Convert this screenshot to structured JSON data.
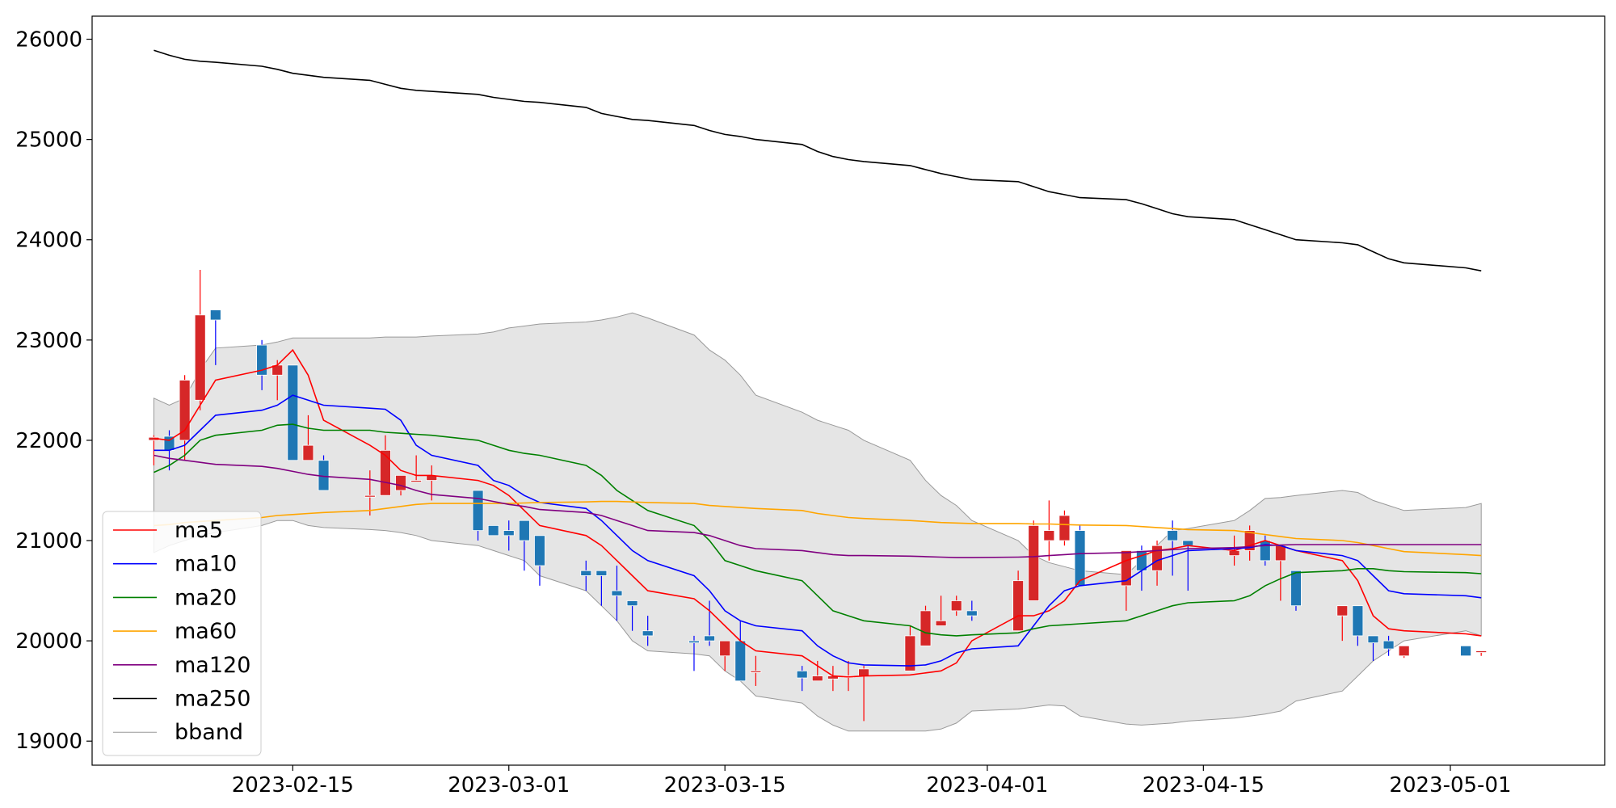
{
  "chart_data": {
    "type": "candlestick",
    "grid": false,
    "legend_position": "lower-left",
    "y_ticks": [
      19000,
      20000,
      21000,
      22000,
      23000,
      24000,
      25000,
      26000
    ],
    "ylim": [
      18760,
      26230
    ],
    "xlim": [
      "2023-02-02",
      "2023-05-11"
    ],
    "x_ticks": [
      "2023-02-15",
      "2023-03-01",
      "2023-03-15",
      "2023-04-01",
      "2023-04-15",
      "2023-05-01"
    ],
    "colors": {
      "up": "#d62728",
      "down": "#1f77b4",
      "ma5": "#ff0000",
      "ma10": "#0000ff",
      "ma20": "#008000",
      "ma60": "#ffa500",
      "ma120": "#800080",
      "ma250": "#000000",
      "bband_fill": "#e5e5e5",
      "bband_edge": "#999999"
    },
    "legend": [
      "ma5",
      "ma10",
      "ma20",
      "ma60",
      "ma120",
      "ma250",
      "bband"
    ],
    "dates": [
      "2023-02-06",
      "2023-02-07",
      "2023-02-08",
      "2023-02-09",
      "2023-02-10",
      "2023-02-13",
      "2023-02-14",
      "2023-02-15",
      "2023-02-16",
      "2023-02-17",
      "2023-02-20",
      "2023-02-21",
      "2023-02-22",
      "2023-02-23",
      "2023-02-24",
      "2023-02-27",
      "2023-02-28",
      "2023-03-01",
      "2023-03-02",
      "2023-03-03",
      "2023-03-06",
      "2023-03-07",
      "2023-03-08",
      "2023-03-09",
      "2023-03-10",
      "2023-03-13",
      "2023-03-14",
      "2023-03-15",
      "2023-03-16",
      "2023-03-17",
      "2023-03-20",
      "2023-03-21",
      "2023-03-22",
      "2023-03-23",
      "2023-03-24",
      "2023-03-27",
      "2023-03-28",
      "2023-03-29",
      "2023-03-30",
      "2023-03-31",
      "2023-04-03",
      "2023-04-04",
      "2023-04-05",
      "2023-04-06",
      "2023-04-07",
      "2023-04-10",
      "2023-04-11",
      "2023-04-12",
      "2023-04-13",
      "2023-04-14",
      "2023-04-17",
      "2023-04-18",
      "2023-04-19",
      "2023-04-20",
      "2023-04-21",
      "2023-04-24",
      "2023-04-25",
      "2023-04-26",
      "2023-04-27",
      "2023-04-28",
      "2023-05-02",
      "2023-05-03"
    ],
    "ohlc": [
      [
        22000,
        22050,
        21750,
        22030
      ],
      [
        22040,
        22100,
        21700,
        21900
      ],
      [
        22000,
        22650,
        21800,
        22600
      ],
      [
        22400,
        23700,
        22300,
        23250
      ],
      [
        23300,
        23300,
        22750,
        23200
      ],
      [
        22950,
        23000,
        22500,
        22650
      ],
      [
        22650,
        22800,
        22400,
        22750
      ],
      [
        22750,
        22750,
        21800,
        21800
      ],
      [
        21800,
        22250,
        21800,
        21950
      ],
      [
        21800,
        21850,
        21500,
        21500
      ],
      [
        21450,
        21700,
        21250,
        21450
      ],
      [
        21450,
        22050,
        21450,
        21900
      ],
      [
        21500,
        21650,
        21450,
        21650
      ],
      [
        21600,
        21850,
        21600,
        21600
      ],
      [
        21600,
        21750,
        21400,
        21650
      ],
      [
        21500,
        21500,
        21000,
        21100
      ],
      [
        21150,
        21150,
        21050,
        21050
      ],
      [
        21100,
        21200,
        20900,
        21050
      ],
      [
        21200,
        21200,
        20700,
        21000
      ],
      [
        21050,
        21050,
        20550,
        20750
      ],
      [
        20700,
        20800,
        20500,
        20650
      ],
      [
        20700,
        20700,
        20350,
        20650
      ],
      [
        20500,
        20750,
        20200,
        20450
      ],
      [
        20400,
        20400,
        20100,
        20350
      ],
      [
        20100,
        20250,
        19950,
        20050
      ],
      [
        20000,
        20050,
        19700,
        19980
      ],
      [
        20050,
        20400,
        19950,
        20000
      ],
      [
        19850,
        20000,
        19700,
        20000
      ],
      [
        20000,
        20200,
        19600,
        19600
      ],
      [
        19700,
        19850,
        19550,
        19700
      ],
      [
        19700,
        19750,
        19500,
        19630
      ],
      [
        19600,
        19800,
        19600,
        19650
      ],
      [
        19620,
        19750,
        19500,
        19650
      ],
      [
        19650,
        19800,
        19500,
        19650
      ],
      [
        19650,
        19750,
        19200,
        19720
      ],
      [
        19700,
        20150,
        19700,
        20050
      ],
      [
        19950,
        20350,
        19950,
        20300
      ],
      [
        20150,
        20450,
        20150,
        20200
      ],
      [
        20300,
        20450,
        20250,
        20400
      ],
      [
        20300,
        20400,
        20200,
        20250
      ],
      [
        20100,
        20700,
        20100,
        20600
      ],
      [
        20400,
        21200,
        20400,
        21150
      ],
      [
        21000,
        21400,
        20800,
        21100
      ],
      [
        21000,
        21300,
        20950,
        21250
      ],
      [
        21100,
        21150,
        20550,
        20550
      ],
      [
        20550,
        20900,
        20300,
        20900
      ],
      [
        20900,
        20950,
        20500,
        20700
      ],
      [
        20700,
        21000,
        20550,
        20950
      ],
      [
        21100,
        21200,
        20650,
        21000
      ],
      [
        21000,
        21000,
        20500,
        20950
      ],
      [
        20850,
        21050,
        20750,
        20900
      ],
      [
        20900,
        21150,
        20800,
        21100
      ],
      [
        21000,
        21050,
        20750,
        20800
      ],
      [
        20800,
        20900,
        20400,
        20950
      ],
      [
        20700,
        20700,
        20300,
        20350
      ],
      [
        20250,
        20350,
        20000,
        20350
      ],
      [
        20350,
        20350,
        19950,
        20050
      ],
      [
        20050,
        20050,
        19800,
        19980
      ],
      [
        20000,
        20050,
        19850,
        19920
      ],
      [
        19850,
        19950,
        19830,
        19950
      ],
      [
        19950,
        19950,
        19850,
        19850
      ],
      [
        19900,
        19900,
        19850,
        19900
      ]
    ],
    "series": [
      {
        "name": "ma5",
        "values": [
          22020,
          22000,
          22100,
          22350,
          22600,
          22700,
          22750,
          22900,
          22650,
          22200,
          21950,
          21850,
          21700,
          21650,
          21650,
          21600,
          21550,
          21450,
          21300,
          21150,
          21050,
          20950,
          20800,
          20650,
          20500,
          20420,
          20300,
          20150,
          20000,
          19900,
          19850,
          19750,
          19650,
          19640,
          19650,
          19660,
          19680,
          19700,
          19780,
          20000,
          20250,
          20250,
          20300,
          20400,
          20600,
          20800,
          20850,
          20900,
          20920,
          20950,
          20900,
          20950,
          21000,
          20950,
          20900,
          20800,
          20600,
          20250,
          20120,
          20100,
          20070,
          20050
        ]
      },
      {
        "name": "ma10",
        "values": [
          21900,
          21900,
          21950,
          22100,
          22250,
          22300,
          22350,
          22450,
          22400,
          22350,
          22320,
          22310,
          22200,
          21950,
          21850,
          21750,
          21600,
          21550,
          21450,
          21380,
          21320,
          21200,
          21050,
          20900,
          20800,
          20650,
          20500,
          20300,
          20200,
          20150,
          20100,
          19950,
          19850,
          19780,
          19760,
          19750,
          19760,
          19800,
          19880,
          19920,
          19950,
          20150,
          20350,
          20500,
          20550,
          20600,
          20700,
          20800,
          20850,
          20900,
          20920,
          20930,
          20960,
          20950,
          20900,
          20850,
          20800,
          20650,
          20500,
          20470,
          20450,
          20430
        ]
      },
      {
        "name": "ma20",
        "values": [
          21680,
          21750,
          21850,
          22000,
          22050,
          22100,
          22150,
          22160,
          22120,
          22100,
          22100,
          22080,
          22070,
          22060,
          22050,
          22000,
          21950,
          21900,
          21870,
          21850,
          21750,
          21650,
          21500,
          21400,
          21300,
          21150,
          21000,
          20800,
          20750,
          20700,
          20600,
          20450,
          20300,
          20250,
          20200,
          20150,
          20080,
          20060,
          20050,
          20060,
          20080,
          20120,
          20150,
          20160,
          20170,
          20200,
          20250,
          20300,
          20350,
          20380,
          20400,
          20450,
          20550,
          20620,
          20680,
          20700,
          20720,
          20720,
          20700,
          20690,
          20680,
          20670
        ]
      },
      {
        "name": "ma60",
        "values": [
          21150,
          21160,
          21180,
          21190,
          21200,
          21230,
          21250,
          21260,
          21270,
          21280,
          21300,
          21320,
          21340,
          21360,
          21370,
          21370,
          21370,
          21370,
          21375,
          21380,
          21385,
          21390,
          21390,
          21385,
          21380,
          21370,
          21350,
          21340,
          21330,
          21320,
          21300,
          21270,
          21250,
          21230,
          21220,
          21200,
          21190,
          21180,
          21175,
          21170,
          21170,
          21165,
          21165,
          21160,
          21155,
          21150,
          21140,
          21130,
          21120,
          21110,
          21100,
          21080,
          21060,
          21040,
          21020,
          21000,
          20980,
          20950,
          20920,
          20890,
          20860,
          20850
        ]
      },
      {
        "name": "ma120",
        "values": [
          21850,
          21820,
          21800,
          21780,
          21760,
          21740,
          21720,
          21690,
          21660,
          21640,
          21610,
          21580,
          21550,
          21500,
          21460,
          21420,
          21390,
          21360,
          21340,
          21310,
          21280,
          21250,
          21200,
          21150,
          21100,
          21080,
          21050,
          21000,
          20950,
          20920,
          20900,
          20880,
          20860,
          20850,
          20850,
          20845,
          20840,
          20835,
          20830,
          20830,
          20835,
          20840,
          20850,
          20860,
          20870,
          20880,
          20890,
          20900,
          20910,
          20920,
          20930,
          20940,
          20950,
          20955,
          20960,
          20960,
          20960,
          20960,
          20960,
          20960,
          20960,
          20960
        ]
      },
      {
        "name": "ma250",
        "values": [
          25890,
          25840,
          25800,
          25780,
          25770,
          25730,
          25700,
          25660,
          25640,
          25620,
          25590,
          25550,
          25510,
          25490,
          25480,
          25450,
          25420,
          25400,
          25380,
          25370,
          25320,
          25260,
          25230,
          25200,
          25190,
          25140,
          25090,
          25050,
          25030,
          25000,
          24950,
          24880,
          24830,
          24800,
          24780,
          24740,
          24700,
          24660,
          24630,
          24600,
          24580,
          24530,
          24480,
          24450,
          24420,
          24400,
          24360,
          24310,
          24260,
          24230,
          24200,
          24150,
          24100,
          24050,
          24000,
          23970,
          23950,
          23880,
          23810,
          23770,
          23720,
          23690
        ]
      },
      {
        "name": "bband_upper",
        "values": [
          22420,
          22350,
          22420,
          22700,
          22920,
          22950,
          22980,
          23020,
          23020,
          23020,
          23020,
          23030,
          23030,
          23030,
          23040,
          23060,
          23080,
          23120,
          23140,
          23160,
          23180,
          23200,
          23230,
          23270,
          23220,
          23050,
          22900,
          22800,
          22650,
          22450,
          22280,
          22200,
          22150,
          22100,
          22000,
          21800,
          21600,
          21450,
          21350,
          21200,
          21000,
          20850,
          20780,
          20740,
          20700,
          20660,
          20800,
          20950,
          21100,
          21120,
          21200,
          21300,
          21420,
          21430,
          21450,
          21500,
          21480,
          21400,
          21350,
          21300,
          21330,
          21370
        ]
      },
      {
        "name": "bband_lower",
        "values": [
          20880,
          20950,
          21000,
          21050,
          21080,
          21150,
          21200,
          21200,
          21150,
          21130,
          21110,
          21100,
          21080,
          21050,
          21000,
          20950,
          20900,
          20850,
          20800,
          20650,
          20500,
          20350,
          20200,
          20000,
          19900,
          19870,
          19850,
          19700,
          19600,
          19450,
          19380,
          19250,
          19160,
          19100,
          19100,
          19100,
          19100,
          19120,
          19180,
          19300,
          19320,
          19340,
          19360,
          19350,
          19250,
          19170,
          19160,
          19170,
          19180,
          19200,
          19230,
          19250,
          19270,
          19300,
          19400,
          19500,
          19650,
          19800,
          19900,
          20000,
          20100,
          20050
        ]
      }
    ]
  }
}
